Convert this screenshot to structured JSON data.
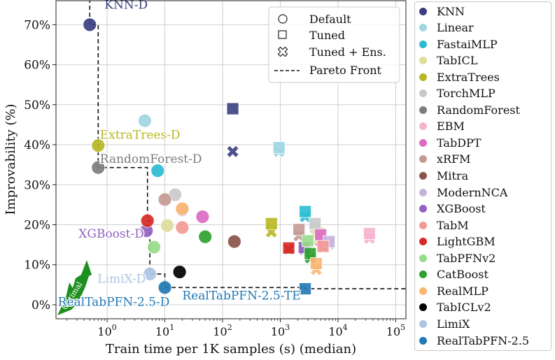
{
  "chart_data": {
    "type": "scatter",
    "xlabel": "Train time per 1K samples (s) (median)",
    "ylabel": "Improvability (%)",
    "xscale": "log",
    "xlim": [
      0.13,
      150000
    ],
    "ylim": [
      -3.5,
      76
    ],
    "x_ticks": [
      {
        "value": 1,
        "label": "10^0"
      },
      {
        "value": 10,
        "label": "10^1"
      },
      {
        "value": 100,
        "label": "10^2"
      },
      {
        "value": 1000,
        "label": "10^3"
      },
      {
        "value": 10000,
        "label": "10^4"
      },
      {
        "value": 100000,
        "label": "10^5"
      }
    ],
    "y_ticks": [
      {
        "value": 0,
        "label": "0%"
      },
      {
        "value": 10,
        "label": "10%"
      },
      {
        "value": 20,
        "label": "20%"
      },
      {
        "value": 30,
        "label": "30%"
      },
      {
        "value": 40,
        "label": "40%"
      },
      {
        "value": 50,
        "label": "50%"
      },
      {
        "value": 60,
        "label": "60%"
      },
      {
        "value": 70,
        "label": "70%"
      }
    ],
    "grid": true,
    "marker_legend": {
      "placement": "top-right",
      "items": [
        {
          "marker": "circle",
          "label": "Default"
        },
        {
          "marker": "square",
          "label": "Tuned"
        },
        {
          "marker": "cross",
          "label": "Tuned + Ens."
        },
        {
          "marker": "dashed",
          "label": "Pareto Front"
        }
      ]
    },
    "models": [
      {
        "name": "KNN",
        "color": "#3b3f80",
        "points": [
          {
            "x": 0.5,
            "y": 70,
            "m": "c"
          },
          {
            "x": 150,
            "y": 49,
            "m": "s"
          },
          {
            "x": 150,
            "y": 38.3,
            "m": "x"
          }
        ]
      },
      {
        "name": "Linear",
        "color": "#9fd6e3",
        "points": [
          {
            "x": 4.5,
            "y": 46,
            "m": "c"
          },
          {
            "x": 950,
            "y": 39.3,
            "m": "s"
          },
          {
            "x": 950,
            "y": 38.3,
            "m": "x"
          }
        ]
      },
      {
        "name": "FastaiMLP",
        "color": "#2bbcd0",
        "points": [
          {
            "x": 7.5,
            "y": 33.5,
            "m": "c"
          },
          {
            "x": 2700,
            "y": 23.3,
            "m": "s"
          },
          {
            "x": 2700,
            "y": 22,
            "m": "x"
          }
        ]
      },
      {
        "name": "TabICL",
        "color": "#dedd9c",
        "points": [
          {
            "x": 11,
            "y": 19.8,
            "m": "c"
          },
          {
            "x": 4500,
            "y": 18,
            "m": "s"
          },
          {
            "x": 4500,
            "y": 16.3,
            "m": "x"
          }
        ]
      },
      {
        "name": "ExtraTrees",
        "color": "#b7b723",
        "points": [
          {
            "x": 0.7,
            "y": 39.8,
            "m": "c"
          },
          {
            "x": 700,
            "y": 20.3,
            "m": "s"
          },
          {
            "x": 700,
            "y": 18.2,
            "m": "x"
          }
        ]
      },
      {
        "name": "TorchMLP",
        "color": "#c9c9c9",
        "points": [
          {
            "x": 15,
            "y": 27.5,
            "m": "c"
          },
          {
            "x": 4000,
            "y": 20.3,
            "m": "s"
          },
          {
            "x": 4000,
            "y": 19.1,
            "m": "x"
          }
        ]
      },
      {
        "name": "RandomForest",
        "color": "#7c7c7c",
        "points": [
          {
            "x": 0.7,
            "y": 34.3,
            "m": "c"
          }
        ]
      },
      {
        "name": "EBM",
        "color": "#f5b4cf",
        "points": [
          {
            "x": 35000,
            "y": 17.8,
            "m": "s"
          },
          {
            "x": 35000,
            "y": 16.6,
            "m": "x"
          }
        ]
      },
      {
        "name": "TabDPT",
        "color": "#dc6bc3",
        "points": [
          {
            "x": 45,
            "y": 22,
            "m": "c"
          },
          {
            "x": 5000,
            "y": 17.5,
            "m": "s"
          },
          {
            "x": 5000,
            "y": 15.8,
            "m": "x"
          }
        ]
      },
      {
        "name": "xRFM",
        "color": "#c49a94",
        "points": [
          {
            "x": 10,
            "y": 26.3,
            "m": "c"
          },
          {
            "x": 2100,
            "y": 18.8,
            "m": "s"
          },
          {
            "x": 2100,
            "y": 17.2,
            "m": "x"
          }
        ]
      },
      {
        "name": "Mitra",
        "color": "#8b5349",
        "points": [
          {
            "x": 160,
            "y": 15.8,
            "m": "c"
          }
        ]
      },
      {
        "name": "ModernNCA",
        "color": "#c5b4da",
        "points": [
          {
            "x": 20,
            "y": 23.7,
            "m": "c"
          },
          {
            "x": 7000,
            "y": 15.8,
            "m": "s"
          },
          {
            "x": 7000,
            "y": 15.2,
            "m": "x"
          }
        ]
      },
      {
        "name": "XGBoost",
        "color": "#9461c2",
        "points": [
          {
            "x": 4.8,
            "y": 18.5,
            "m": "c"
          },
          {
            "x": 2600,
            "y": 14.3,
            "m": "s"
          },
          {
            "x": 2600,
            "y": 13.8,
            "m": "x"
          }
        ]
      },
      {
        "name": "TabM",
        "color": "#f29a96",
        "points": [
          {
            "x": 20,
            "y": 19.3,
            "m": "c"
          },
          {
            "x": 5500,
            "y": 14.6,
            "m": "s"
          },
          {
            "x": 5500,
            "y": 14.3,
            "m": "x"
          }
        ]
      },
      {
        "name": "LightGBM",
        "color": "#d62a27",
        "points": [
          {
            "x": 5.0,
            "y": 21,
            "m": "c"
          },
          {
            "x": 1400,
            "y": 14.2,
            "m": "s"
          },
          {
            "x": 1400,
            "y": 13.9,
            "m": "x"
          }
        ]
      },
      {
        "name": "TabPFNv2",
        "color": "#98dc8a",
        "points": [
          {
            "x": 6.5,
            "y": 14.4,
            "m": "c"
          },
          {
            "x": 3000,
            "y": 16,
            "m": "s"
          },
          {
            "x": 3000,
            "y": 14.6,
            "m": "x"
          }
        ]
      },
      {
        "name": "CatBoost",
        "color": "#2fa12e",
        "points": [
          {
            "x": 50,
            "y": 17,
            "m": "c"
          },
          {
            "x": 3300,
            "y": 12.8,
            "m": "s"
          },
          {
            "x": 3300,
            "y": 11.7,
            "m": "x"
          }
        ]
      },
      {
        "name": "RealMLP",
        "color": "#fbb771",
        "points": [
          {
            "x": 20,
            "y": 24,
            "m": "c"
          },
          {
            "x": 4200,
            "y": 10.3,
            "m": "s"
          },
          {
            "x": 4200,
            "y": 8.8,
            "m": "x"
          }
        ]
      },
      {
        "name": "TabICLv2",
        "color": "#000000",
        "points": [
          {
            "x": 18,
            "y": 8.2,
            "m": "c"
          }
        ]
      },
      {
        "name": "LimiX",
        "color": "#adc4e6",
        "points": [
          {
            "x": 5.5,
            "y": 7.7,
            "m": "c"
          }
        ]
      },
      {
        "name": "RealTabPFN-2.5",
        "color": "#2178b4",
        "points": [
          {
            "x": 10,
            "y": 4.3,
            "m": "c"
          },
          {
            "x": 2700,
            "y": 4,
            "m": "s"
          }
        ]
      }
    ],
    "pareto_front": [
      {
        "x": 0.5,
        "y": 80
      },
      {
        "x": 0.5,
        "y": 70
      },
      {
        "x": 0.7,
        "y": 70
      },
      {
        "x": 0.7,
        "y": 39.8
      },
      {
        "x": 0.7,
        "y": 34.3
      },
      {
        "x": 5.0,
        "y": 34.3
      },
      {
        "x": 5.0,
        "y": 21
      },
      {
        "x": 5.5,
        "y": 21
      },
      {
        "x": 5.5,
        "y": 7.7
      },
      {
        "x": 10,
        "y": 7.7
      },
      {
        "x": 10,
        "y": 4.3
      },
      {
        "x": 2700,
        "y": 4.3
      },
      {
        "x": 2700,
        "y": 4
      },
      {
        "x": 150000,
        "y": 4
      }
    ],
    "annotations": [
      {
        "text": "KNN-D",
        "model": "KNN",
        "x": 0.9,
        "y": 74
      },
      {
        "text": "ExtraTrees-D",
        "model": "ExtraTrees",
        "x": 0.75,
        "y": 41.5
      },
      {
        "text": "RandomForest-D",
        "model": "RandomForest",
        "x": 0.75,
        "y": 35.5
      },
      {
        "text": "XGBoost-D",
        "model": "XGBoost",
        "x": 0.32,
        "y": 16.8
      },
      {
        "text": "LimiX-D",
        "model": "LimiX",
        "x": 0.68,
        "y": 5.5
      },
      {
        "text": "RealTabPFN-2.5-D",
        "model": "RealTabPFN-2.5",
        "x": 0.14,
        "y": -0.3
      },
      {
        "text": "RealTabPFN-2.5-TE",
        "model": "RealTabPFN-2.5",
        "x": 20,
        "y": 1.3
      }
    ],
    "optimal_arrow": {
      "label": "Optimal",
      "color": "#1e8f1e"
    }
  },
  "legend_items": [
    {
      "label": "KNN",
      "color": "#3b3f80"
    },
    {
      "label": "Linear",
      "color": "#9fd6e3"
    },
    {
      "label": "FastaiMLP",
      "color": "#2bbcd0"
    },
    {
      "label": "TabICL",
      "color": "#dedd9c"
    },
    {
      "label": "ExtraTrees",
      "color": "#b7b723"
    },
    {
      "label": "TorchMLP",
      "color": "#c9c9c9"
    },
    {
      "label": "RandomForest",
      "color": "#7c7c7c"
    },
    {
      "label": "EBM",
      "color": "#f5b4cf"
    },
    {
      "label": "TabDPT",
      "color": "#dc6bc3"
    },
    {
      "label": "xRFM",
      "color": "#c49a94"
    },
    {
      "label": "Mitra",
      "color": "#8b5349"
    },
    {
      "label": "ModernNCA",
      "color": "#c5b4da"
    },
    {
      "label": "XGBoost",
      "color": "#9461c2"
    },
    {
      "label": "TabM",
      "color": "#f29a96"
    },
    {
      "label": "LightGBM",
      "color": "#d62a27"
    },
    {
      "label": "TabPFNv2",
      "color": "#98dc8a"
    },
    {
      "label": "CatBoost",
      "color": "#2fa12e"
    },
    {
      "label": "RealMLP",
      "color": "#fbb771"
    },
    {
      "label": "TabICLv2",
      "color": "#000000"
    },
    {
      "label": "LimiX",
      "color": "#adc4e6"
    },
    {
      "label": "RealTabPFN-2.5",
      "color": "#2178b4"
    }
  ]
}
